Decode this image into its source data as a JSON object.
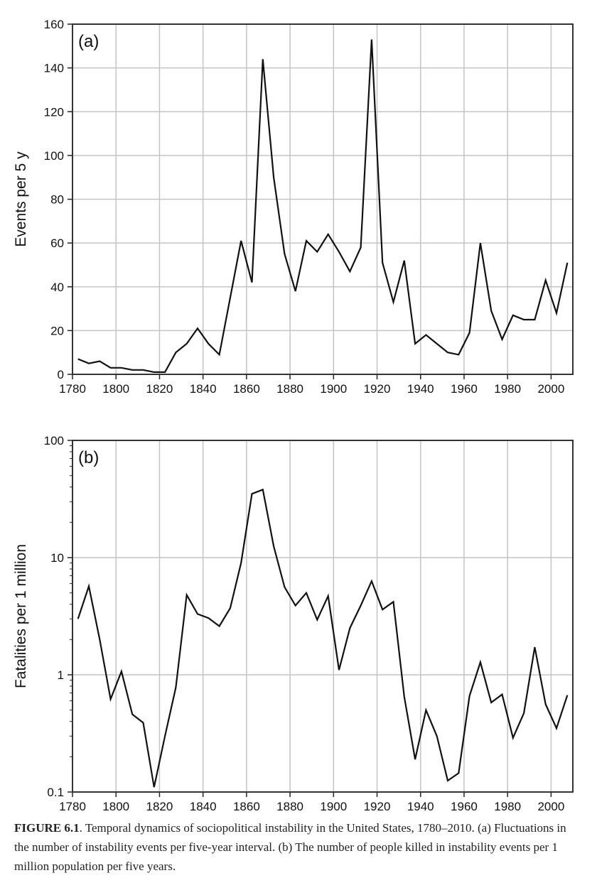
{
  "chart_data": [
    {
      "type": "line",
      "panel_label": "(a)",
      "title": "",
      "xlabel": "",
      "ylabel": "Events per 5 y",
      "xlim": [
        1780,
        2010
      ],
      "ylim": [
        0,
        160
      ],
      "yscale": "linear",
      "grid": true,
      "x_ticks": [
        "1780",
        "1800",
        "1820",
        "1840",
        "1860",
        "1880",
        "1900",
        "1920",
        "1940",
        "1960",
        "1980",
        "2000"
      ],
      "y_ticks": [
        "0",
        "20",
        "40",
        "60",
        "80",
        "100",
        "120",
        "140",
        "160"
      ],
      "x": [
        1782.5,
        1787.5,
        1792.5,
        1797.5,
        1802.5,
        1807.5,
        1812.5,
        1817.5,
        1822.5,
        1827.5,
        1832.5,
        1837.5,
        1842.5,
        1847.5,
        1852.5,
        1857.5,
        1862.5,
        1867.5,
        1872.5,
        1877.5,
        1882.5,
        1887.5,
        1892.5,
        1897.5,
        1902.5,
        1907.5,
        1912.5,
        1917.5,
        1922.5,
        1927.5,
        1932.5,
        1937.5,
        1942.5,
        1947.5,
        1952.5,
        1957.5,
        1962.5,
        1967.5,
        1972.5,
        1977.5,
        1982.5,
        1987.5,
        1992.5,
        1997.5,
        2002.5,
        2007.5
      ],
      "series": [
        {
          "name": "Events",
          "values": [
            7,
            5,
            6,
            3,
            3,
            2,
            2,
            1,
            1,
            10,
            14,
            21,
            14,
            9,
            35,
            61,
            42,
            144,
            90,
            55,
            38,
            61,
            56,
            64,
            56,
            47,
            58,
            153,
            51,
            33,
            52,
            14,
            18,
            14,
            10,
            9,
            19,
            60,
            29,
            16,
            27,
            25,
            25,
            43,
            28,
            51
          ]
        }
      ]
    },
    {
      "type": "line",
      "panel_label": "(b)",
      "title": "",
      "xlabel": "",
      "ylabel": "Fatalities per 1 million",
      "xlim": [
        1780,
        2010
      ],
      "ylim": [
        0.1,
        100
      ],
      "yscale": "log",
      "grid": true,
      "x_ticks": [
        "1780",
        "1800",
        "1820",
        "1840",
        "1860",
        "1880",
        "1900",
        "1920",
        "1940",
        "1960",
        "1980",
        "2000"
      ],
      "y_ticks": [
        "0.1",
        "1",
        "10",
        "100"
      ],
      "x": [
        1782.5,
        1787.5,
        1792.5,
        1797.5,
        1802.5,
        1807.5,
        1812.5,
        1817.5,
        1822.5,
        1827.5,
        1832.5,
        1837.5,
        1842.5,
        1847.5,
        1852.5,
        1857.5,
        1862.5,
        1867.5,
        1872.5,
        1877.5,
        1882.5,
        1887.5,
        1892.5,
        1897.5,
        1902.5,
        1907.5,
        1912.5,
        1917.5,
        1922.5,
        1927.5,
        1932.5,
        1937.5,
        1942.5,
        1947.5,
        1952.5,
        1957.5,
        1962.5,
        1967.5,
        1972.5,
        1977.5,
        1982.5,
        1987.5,
        1992.5,
        1997.5,
        2002.5,
        2007.5
      ],
      "series": [
        {
          "name": "Fatalities",
          "values": [
            3.0,
            5.7,
            2.0,
            0.62,
            1.07,
            0.46,
            0.39,
            0.11,
            0.3,
            0.78,
            4.8,
            3.3,
            3.05,
            2.6,
            3.7,
            9.0,
            35,
            38,
            12.5,
            5.6,
            3.9,
            5.0,
            2.95,
            4.7,
            1.1,
            2.5,
            3.9,
            6.3,
            3.6,
            4.2,
            0.65,
            0.19,
            0.5,
            0.3,
            0.125,
            0.145,
            0.66,
            1.28,
            0.58,
            0.68,
            0.29,
            0.47,
            1.72,
            0.56,
            0.35,
            0.67
          ]
        }
      ]
    }
  ],
  "caption": {
    "label": "FIGURE 6.1",
    "text": ". Temporal dynamics of sociopolitical instability in the United States, 1780–2010. (a) Fluctuations in the number of instability events per five-year interval. (b) The number of people killed in instability events per 1 million population per five years."
  }
}
